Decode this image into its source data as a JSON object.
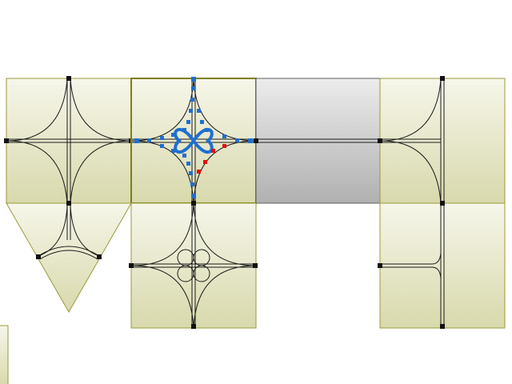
{
  "canvas": {
    "background": "#ffffff"
  },
  "colors": {
    "tile_fill_top": "#f6f6ea",
    "tile_fill_bottom": "#d8d9ac",
    "tile_border": "#9a9a3c",
    "selected_border": "#7e8010",
    "gray_fill_top": "#ececec",
    "gray_fill_bottom": "#b0b0b0",
    "gray_border": "#606060",
    "track": "#1a1a1a",
    "node": "#111111",
    "selection_handle": "#1f6fd0",
    "highlight_handle": "#e01010"
  },
  "tiles": [
    {
      "name": "tile-cross-curved",
      "kind": "square-cross",
      "selected": false
    },
    {
      "name": "tile-cross-selected",
      "kind": "square-cross-star",
      "selected": true
    },
    {
      "name": "tile-straight-gray",
      "kind": "gray-straight",
      "selected": false
    },
    {
      "name": "tile-t-junction",
      "kind": "square-t",
      "selected": false
    },
    {
      "name": "tile-triangle",
      "kind": "triangle-y",
      "selected": false
    },
    {
      "name": "tile-cross-clover",
      "kind": "square-cross-clover",
      "selected": false
    },
    {
      "name": "tile-side-junction",
      "kind": "square-side",
      "selected": false
    },
    {
      "name": "tile-partial-edge",
      "kind": "partial",
      "selected": false
    }
  ]
}
